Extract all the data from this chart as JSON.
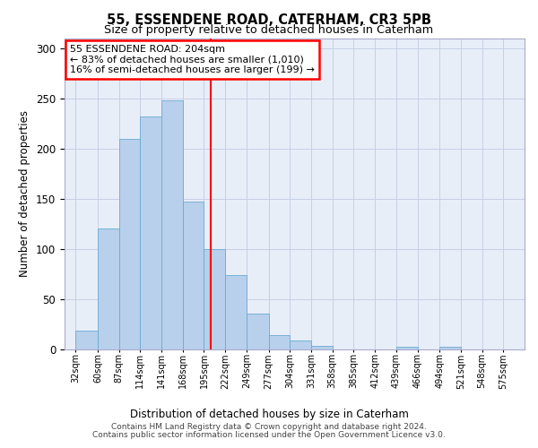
{
  "title1": "55, ESSENDENE ROAD, CATERHAM, CR3 5PB",
  "title2": "Size of property relative to detached houses in Caterham",
  "xlabel": "Distribution of detached houses by size in Caterham",
  "ylabel": "Number of detached properties",
  "footer1": "Contains HM Land Registry data © Crown copyright and database right 2024.",
  "footer2": "Contains public sector information licensed under the Open Government Licence v3.0.",
  "annotation_line1": "55 ESSENDENE ROAD: 204sqm",
  "annotation_line2": "← 83% of detached houses are smaller (1,010)",
  "annotation_line3": "16% of semi-detached houses are larger (199) →",
  "bar_color": "#b8d0eb",
  "bar_edge_color": "#6aaad4",
  "marker_color": "red",
  "marker_x": 204,
  "bin_edges": [
    32,
    60,
    87,
    114,
    141,
    168,
    195,
    222,
    249,
    277,
    304,
    331,
    358,
    385,
    412,
    439,
    466,
    494,
    521,
    548,
    575
  ],
  "bar_heights": [
    19,
    120,
    210,
    232,
    248,
    147,
    100,
    74,
    36,
    14,
    9,
    4,
    0,
    0,
    0,
    3,
    0,
    3,
    0,
    0
  ],
  "xlim": [
    18,
    602
  ],
  "ylim": [
    0,
    310
  ],
  "yticks": [
    0,
    50,
    100,
    150,
    200,
    250,
    300
  ],
  "background_color": "#e8eef8",
  "grid_color": "#c5cfe6"
}
